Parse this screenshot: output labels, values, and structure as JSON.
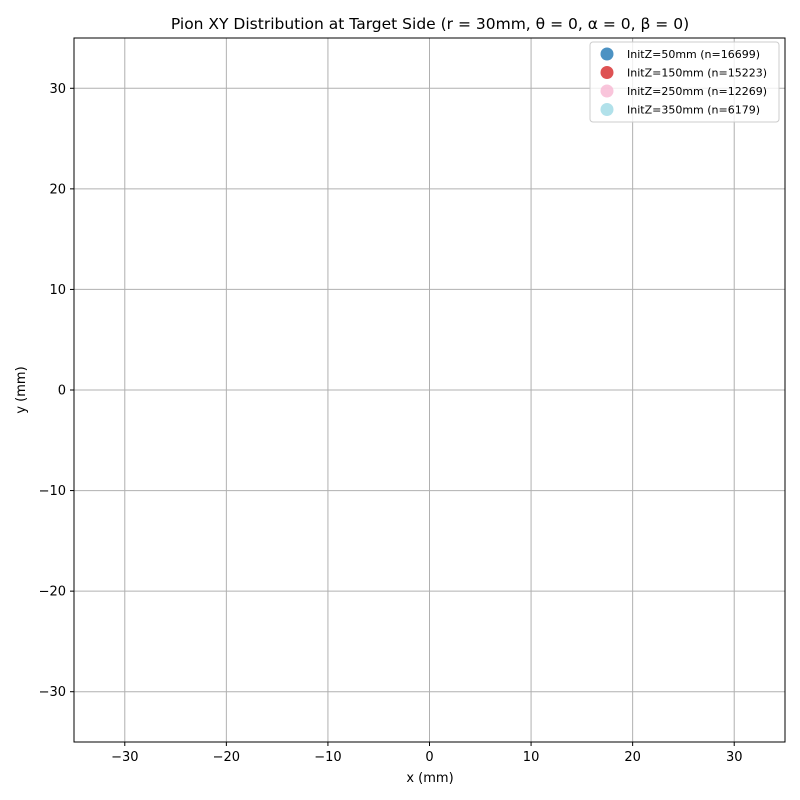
{
  "chart_data": {
    "type": "scatter",
    "title": "Pion XY Distribution at Target Side (r = 30mm, θ = 0, α = 0, β = 0)",
    "xlabel": "x (mm)",
    "ylabel": "y (mm)",
    "xlim": [
      -35,
      35
    ],
    "ylim": [
      -35,
      35
    ],
    "xticks": [
      -30,
      -20,
      -10,
      0,
      10,
      20,
      30
    ],
    "yticks": [
      -30,
      -20,
      -10,
      0,
      10,
      20,
      30
    ],
    "xtick_labels": [
      "−30",
      "−20",
      "−10",
      "0",
      "10",
      "20",
      "30"
    ],
    "ytick_labels": [
      "−30",
      "−20",
      "−10",
      "0",
      "10",
      "20",
      "30"
    ],
    "grid": true,
    "legend_position": "top-right",
    "series": [
      {
        "name": "InitZ=50mm (n=16699)",
        "color": "#1f77b4",
        "points": []
      },
      {
        "name": "InitZ=150mm (n=15223)",
        "color": "#d62728",
        "points": []
      },
      {
        "name": "InitZ=250mm (n=12269)",
        "color": "#f7b6d2",
        "points": []
      },
      {
        "name": "InitZ=350mm (n=6179)",
        "color": "#9edae5",
        "points": []
      }
    ]
  }
}
